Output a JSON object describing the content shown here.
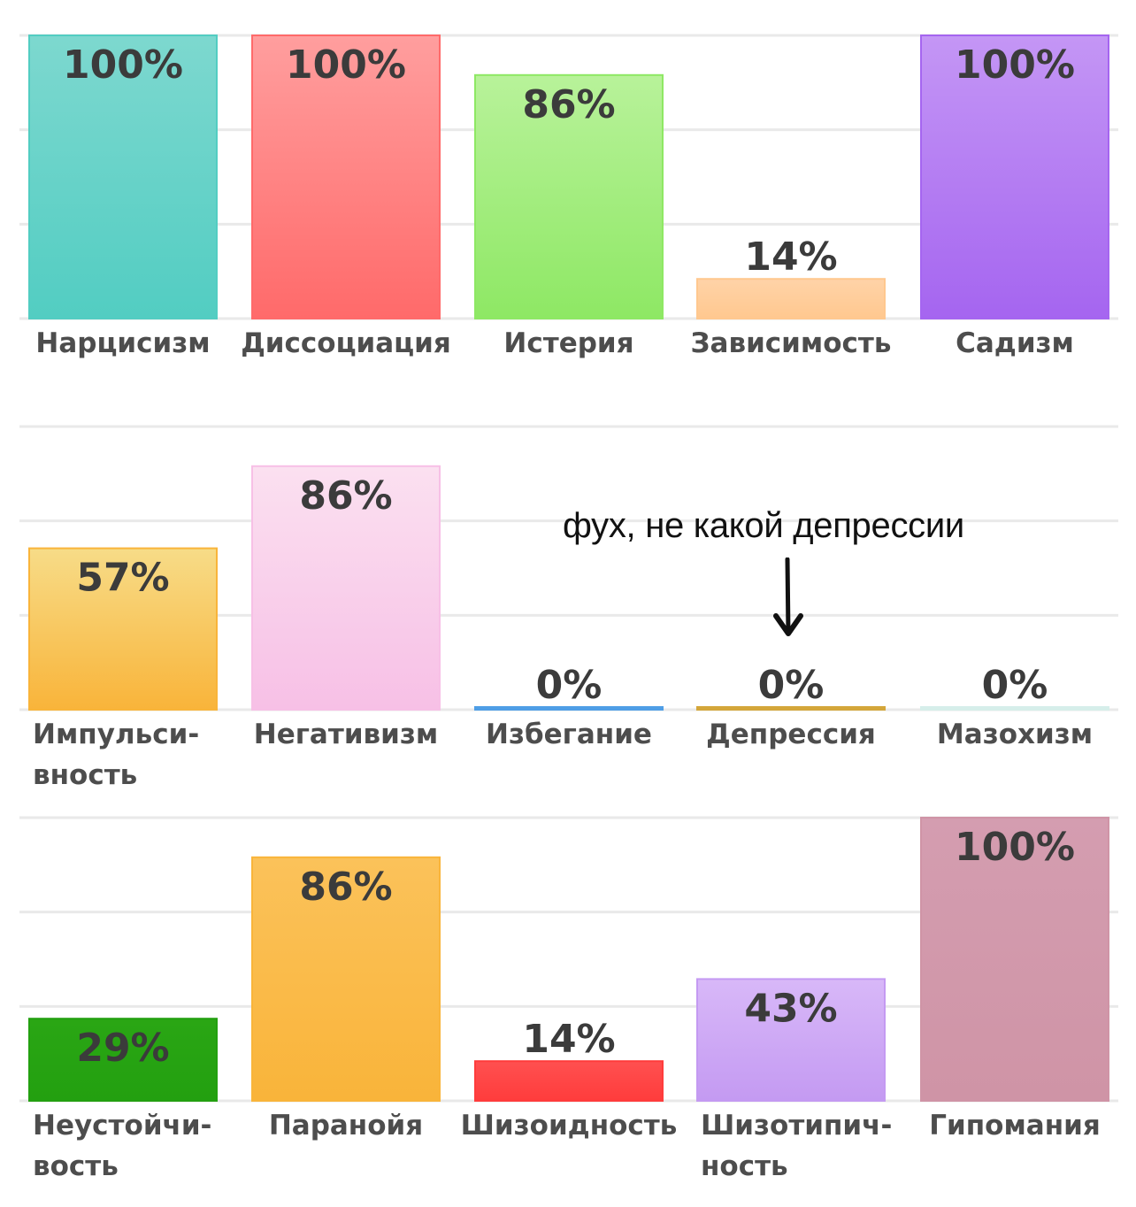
{
  "chart_data": [
    {
      "type": "bar",
      "ylim": [
        0,
        100
      ],
      "grid": true,
      "data_labels": [
        "100%",
        "100%",
        "86%",
        "14%",
        "100%"
      ],
      "categories": [
        "Нарцисизм",
        "Диссоциация",
        "Истерия",
        "Зависимость",
        "Садизм"
      ],
      "values": [
        100,
        100,
        86,
        14,
        100
      ],
      "colors": [
        [
          "#7dd8cf",
          "#52cdc2"
        ],
        [
          "#ff9e9e",
          "#ff6a6a"
        ],
        [
          "#b8f29a",
          "#8ee864"
        ],
        [
          "#ffd3a8",
          "#ffc88f"
        ],
        [
          "#c496f5",
          "#a565f0"
        ]
      ]
    },
    {
      "type": "bar",
      "ylim": [
        0,
        100
      ],
      "grid": true,
      "data_labels": [
        "57%",
        "86%",
        "0%",
        "0%",
        "0%"
      ],
      "categories": [
        "Импульси-\nвность",
        "Негативизм",
        "Избегание",
        "Депрессия",
        "Мазохизм"
      ],
      "values": [
        57,
        86,
        0,
        0,
        0
      ],
      "colors": [
        [
          "#f7dc88",
          "#f9b43a"
        ],
        [
          "#fbe0f0",
          "#f7c0e6"
        ],
        [
          "#4f9ee6",
          "#4f9ee6"
        ],
        [
          "#d4a63a",
          "#d4a63a"
        ],
        [
          "#d6eeea",
          "#d6eeea"
        ]
      ]
    },
    {
      "type": "bar",
      "ylim": [
        0,
        100
      ],
      "grid": true,
      "data_labels": [
        "29%",
        "86%",
        "14%",
        "43%",
        "100%"
      ],
      "categories": [
        "Неустойчи-\nвость",
        "Паранойя",
        "Шизоидность",
        "Шизотипич-\nность",
        "Гипомания"
      ],
      "values": [
        29,
        86,
        14,
        43,
        100
      ],
      "colors": [
        [
          "#2aa614",
          "#23a010"
        ],
        [
          "#fbc25a",
          "#f9b43a"
        ],
        [
          "#ff5050",
          "#ff3c3c"
        ],
        [
          "#d8b8f8",
          "#c49af2"
        ],
        [
          "#d49db0",
          "#cf94a6"
        ]
      ]
    }
  ],
  "annotation": {
    "text": "фух, не какой депрессии",
    "arrow_icon": "down-arrow-icon",
    "color": "#111111"
  }
}
